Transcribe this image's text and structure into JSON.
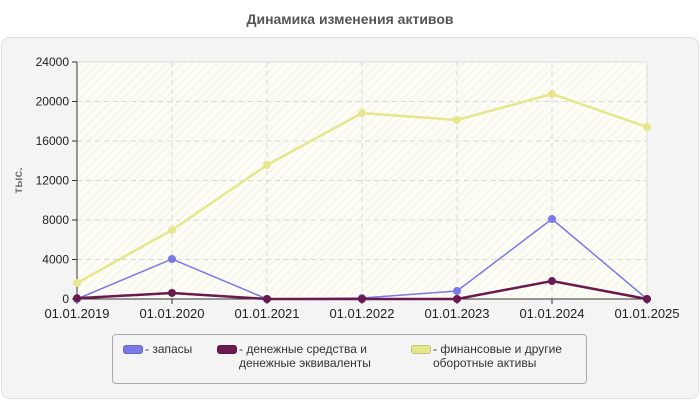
{
  "chart_data": {
    "type": "line",
    "title": "Динамика изменения активов",
    "xlabel": "",
    "ylabel": "тыс.",
    "ylim": [
      0,
      24000
    ],
    "yticks": [
      0,
      4000,
      8000,
      12000,
      16000,
      20000,
      24000
    ],
    "categories": [
      "01.01.2019",
      "01.01.2020",
      "01.01.2021",
      "01.01.2022",
      "01.01.2023",
      "01.01.2024",
      "01.01.2025"
    ],
    "grid": true,
    "legend_position": "bottom",
    "series": [
      {
        "name": "запасы",
        "color": "#7a7ae6",
        "values": [
          0,
          4050,
          0,
          100,
          810,
          8100,
          0
        ]
      },
      {
        "name": "денежные средства и денежные эквиваленты",
        "color": "#6b1a4e",
        "values": [
          80,
          610,
          0,
          0,
          0,
          1820,
          0
        ]
      },
      {
        "name": "финансовые и другие оборотные активы",
        "color": "#e6e68c",
        "values": [
          1620,
          6990,
          13570,
          18830,
          18130,
          20760,
          17420
        ]
      }
    ]
  },
  "legend": {
    "items": [
      {
        "label": "- запасы",
        "color": "#7a7ae6"
      },
      {
        "label": "- денежные средства и\nденежные эквиваленты",
        "color": "#6b1a4e"
      },
      {
        "label": "- финансовые и другие\nоборотные активы",
        "color": "#e6e68c"
      }
    ]
  }
}
